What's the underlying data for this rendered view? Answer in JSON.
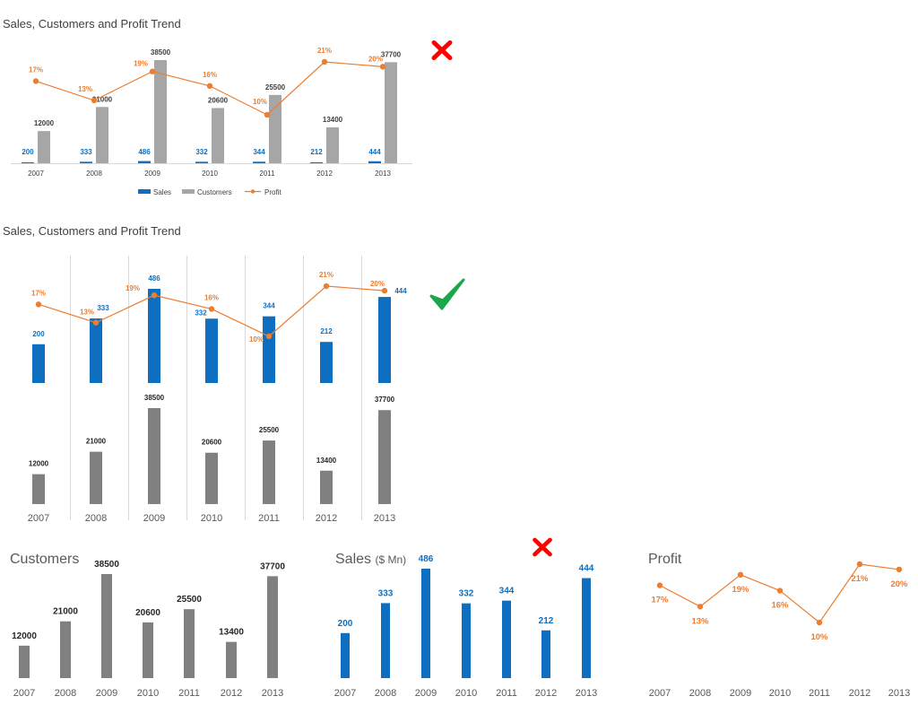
{
  "colors": {
    "sales": "#0E6FC0",
    "customers_light": "#A6A6A6",
    "customers_dark": "#808080",
    "profit": "#ED7D31",
    "cross": "#FF0000",
    "tick": "#1AA64A",
    "grid": "#D9D9D9"
  },
  "icons": {
    "cross": "red-cross-icon",
    "check": "green-check-icon"
  },
  "chart_data": [
    {
      "type": "bar",
      "title": "Sales, Customers and Profit Trend",
      "categories": [
        "2007",
        "2008",
        "2009",
        "2010",
        "2011",
        "2012",
        "2013"
      ],
      "series": [
        {
          "name": "Sales",
          "values": [
            200,
            333,
            486,
            332,
            344,
            212,
            444
          ]
        },
        {
          "name": "Customers",
          "values": [
            12000,
            21000,
            38500,
            20600,
            25500,
            13400,
            37700
          ]
        },
        {
          "name": "Profit",
          "type": "line",
          "values": [
            17,
            13,
            19,
            16,
            10,
            21,
            20
          ],
          "labels": [
            "17%",
            "13%",
            "19%",
            "16%",
            "10%",
            "21%",
            "20%"
          ]
        }
      ],
      "legend": "bottom"
    },
    {
      "type": "bar",
      "title": "Sales, Customers and Profit Trend",
      "categories": [
        "2007",
        "2008",
        "2009",
        "2010",
        "2011",
        "2012",
        "2013"
      ],
      "series": [
        {
          "values": [
            200,
            333,
            486,
            332,
            344,
            212,
            444
          ]
        },
        {
          "values": [
            12000,
            21000,
            38500,
            20600,
            25500,
            13400,
            37700
          ]
        },
        {
          "type": "line",
          "values": [
            17,
            13,
            19,
            16,
            10,
            21,
            20
          ],
          "labels": [
            "17%",
            "13%",
            "19%",
            "16%",
            "10%",
            "21%",
            "20%"
          ]
        }
      ],
      "grid": true
    },
    {
      "type": "bar",
      "title": "Customers",
      "categories": [
        "2007",
        "2008",
        "2009",
        "2010",
        "2011",
        "2012",
        "2013"
      ],
      "values": [
        12000,
        21000,
        38500,
        20600,
        25500,
        13400,
        37700
      ]
    },
    {
      "type": "bar",
      "title": "Sales",
      "title_unit": "($ Mn)",
      "categories": [
        "2007",
        "2008",
        "2009",
        "2010",
        "2011",
        "2012",
        "2013"
      ],
      "values": [
        200,
        333,
        486,
        332,
        344,
        212,
        444
      ]
    },
    {
      "type": "line",
      "title": "Profit",
      "categories": [
        "2007",
        "2008",
        "2009",
        "2010",
        "2011",
        "2012",
        "2013"
      ],
      "values": [
        17,
        13,
        19,
        16,
        10,
        21,
        20
      ],
      "labels": [
        "17%",
        "13%",
        "19%",
        "16%",
        "10%",
        "21%",
        "20%"
      ]
    }
  ]
}
